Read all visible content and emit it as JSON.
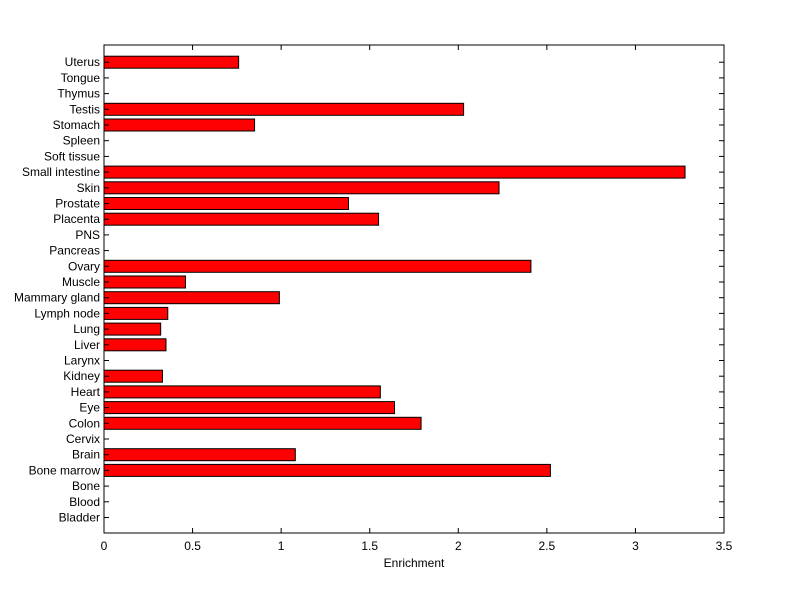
{
  "chart_data": {
    "type": "bar",
    "orientation": "horizontal",
    "categories": [
      "Bladder",
      "Blood",
      "Bone",
      "Bone marrow",
      "Brain",
      "Cervix",
      "Colon",
      "Eye",
      "Heart",
      "Kidney",
      "Larynx",
      "Liver",
      "Lung",
      "Lymph node",
      "Mammary gland",
      "Muscle",
      "Ovary",
      "Pancreas",
      "PNS",
      "Placenta",
      "Prostate",
      "Skin",
      "Small intestine",
      "Soft tissue",
      "Spleen",
      "Stomach",
      "Testis",
      "Thymus",
      "Tongue",
      "Uterus"
    ],
    "values": [
      0,
      0,
      0,
      2.52,
      1.08,
      0,
      1.79,
      1.64,
      1.56,
      0.33,
      0,
      0.35,
      0.32,
      0.36,
      0.99,
      0.46,
      2.41,
      0,
      0,
      1.55,
      1.38,
      2.23,
      3.28,
      0,
      0,
      0.85,
      2.03,
      0,
      0,
      0.76
    ],
    "title": "",
    "xlabel": "Enrichment",
    "ylabel": "",
    "xlim": [
      0,
      3.5
    ],
    "xticks": [
      "0",
      "0.5",
      "1",
      "1.5",
      "2",
      "2.5",
      "3",
      "3.5"
    ],
    "grid": false,
    "bar_color": "#ff0000"
  }
}
